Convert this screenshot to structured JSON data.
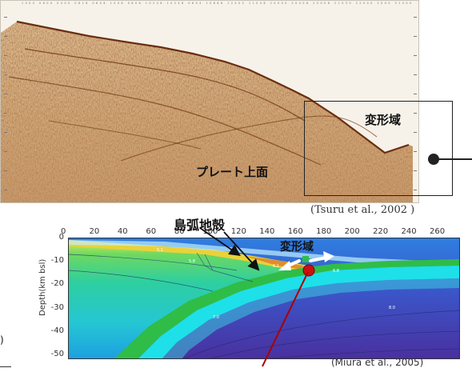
{
  "seismic": {
    "top_ticks": "1000 0600 0400 0616 0606 1006 0606 10246 10246 0604 10666 12402 11048 20000 20406 20006 21030 22000 2000 31000 33330 23240 33000 5224 32176 33214 35234 0016",
    "label_deform": "変形域",
    "label_plate": "プレート上面",
    "citation": "(Tsuru et al., 2002 )"
  },
  "model": {
    "x_ticks": [
      "0",
      "20",
      "40",
      "60",
      "80",
      "100",
      "120",
      "140",
      "160",
      "180",
      "200",
      "220",
      "240",
      "260"
    ],
    "y_ticks": [
      "0",
      "-10",
      "-20",
      "-30",
      "-40",
      "-50"
    ],
    "y_label": "Depth(km bsl)",
    "label_arc_crust": "島弧地殻",
    "label_deform": "変形域",
    "citation": "(Miura et al., 2005)"
  },
  "left_fragment": ")",
  "colors": {
    "seismic_dark": "#7a3b1a",
    "seismic_light": "#efe6d4",
    "mantle_blue": "#3e3ab8",
    "crust_green": "#2fbd47",
    "slab_cyan": "#1ee0e8",
    "marker_red": "#cc1111"
  }
}
